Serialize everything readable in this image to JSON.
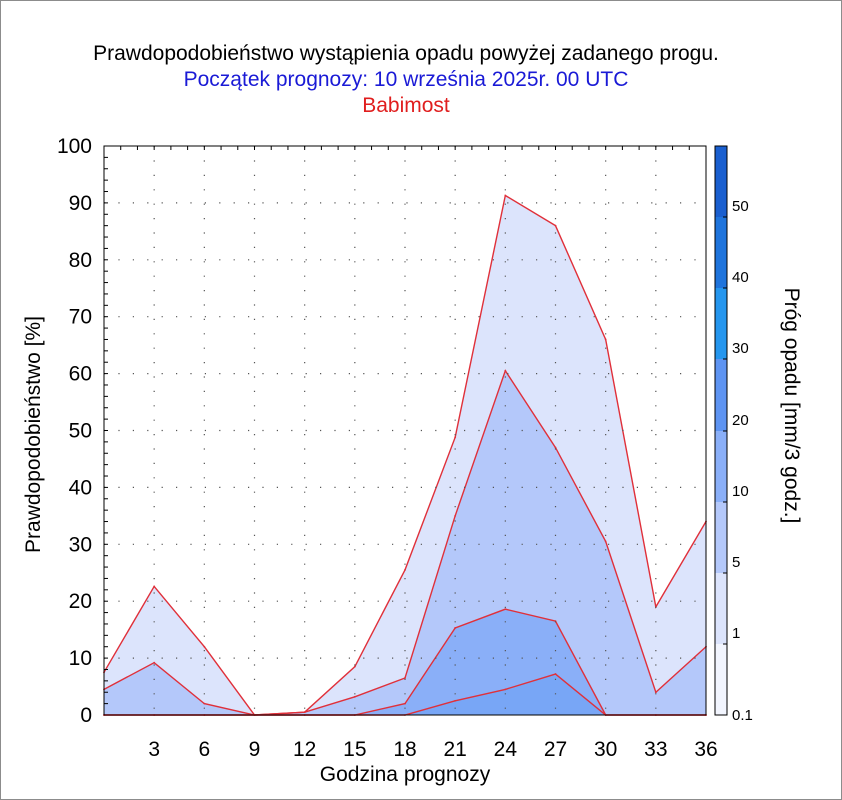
{
  "title": "Prawdopodobieństwo wystąpienia opadu powyżej zadanego progu.",
  "subtitle": "Początek prognozy: 10 września 2025r. 00 UTC",
  "location": "Babimost",
  "colors": {
    "title": "#000000",
    "subtitle": "#1a1ad6",
    "location": "#e01e1e",
    "outline": "#e0303a"
  },
  "chart_data": {
    "type": "area",
    "xlabel": "Godzina prognozy",
    "ylabel": "Prawdopodobieństwo [%]",
    "xlim": [
      0,
      36
    ],
    "ylim": [
      0,
      100
    ],
    "xticks": [
      3,
      6,
      9,
      12,
      15,
      18,
      21,
      24,
      27,
      30,
      33,
      36
    ],
    "yticks": [
      0,
      10,
      20,
      30,
      40,
      50,
      60,
      70,
      80,
      90,
      100
    ],
    "grid": true,
    "x": [
      0,
      3,
      6,
      9,
      12,
      15,
      18,
      21,
      24,
      27,
      30,
      33,
      36
    ],
    "series": [
      {
        "threshold": "0.1",
        "color": "#dce4fc",
        "values": [
          7.5,
          22.6,
          12,
          0,
          0.5,
          8.5,
          25.5,
          48.8,
          91.3,
          86,
          66,
          19,
          34
        ]
      },
      {
        "threshold": "1",
        "color": "#b4c8fa",
        "values": [
          4.5,
          9.2,
          2,
          0,
          0.5,
          3.2,
          6.5,
          35,
          60.5,
          47,
          30.5,
          4,
          12
        ]
      },
      {
        "threshold": "5",
        "color": "#8aaff8",
        "values": [
          0,
          0,
          0,
          0,
          0,
          0,
          2,
          15.3,
          18.6,
          16.5,
          0,
          0,
          0
        ]
      },
      {
        "threshold": "10",
        "color": "#78a6f6",
        "values": [
          0,
          0,
          0,
          0,
          0,
          0,
          0,
          2.5,
          4.5,
          7.2,
          0,
          0,
          0
        ]
      }
    ],
    "colorbar": {
      "label": "Próg opadu [mm/3 godz.]",
      "ticks": [
        "0.1",
        "1",
        "5",
        "10",
        "20",
        "30",
        "40",
        "50"
      ],
      "colors": [
        "#f2f5fe",
        "#dce4fc",
        "#b4c8fa",
        "#8aaff8",
        "#5e94f2",
        "#2596ee",
        "#1f74dc",
        "#1a5fcf",
        "#1748bb"
      ]
    }
  }
}
